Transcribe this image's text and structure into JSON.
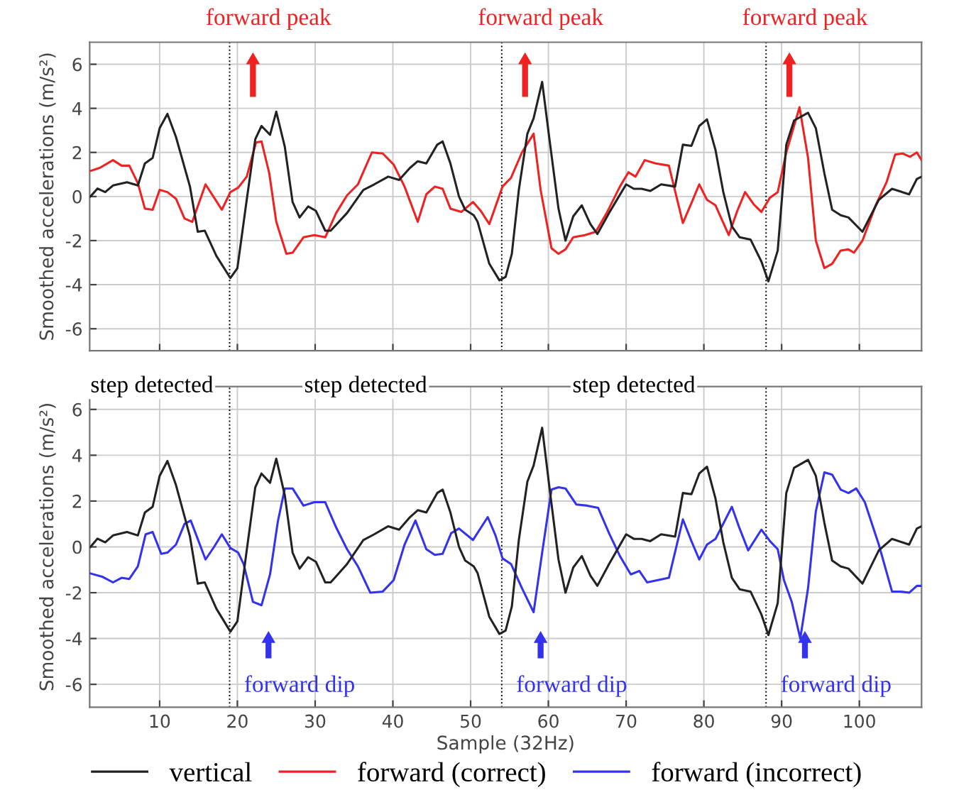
{
  "chart_data": [
    {
      "type": "line",
      "ylabel": "Smoothed accelerations (m/s²)",
      "xlim": [
        1,
        108
      ],
      "ylim": [
        -7,
        7
      ],
      "xticks": [
        10,
        20,
        30,
        40,
        50,
        60,
        70,
        80,
        90,
        100
      ],
      "yticks": [
        -6,
        -4,
        -2,
        0,
        2,
        4,
        6
      ],
      "tick_labels": "y",
      "grid": true,
      "line_style": "solid",
      "marker": "none",
      "series": [
        {
          "name": "vertical",
          "color": "#222222",
          "x": [
            1.1,
            2,
            3,
            4,
            5.8,
            7.2,
            8.1,
            9.1,
            10,
            11,
            12.1,
            13.9,
            14.9,
            15.8,
            17.3,
            19.1,
            20,
            21.2,
            22.3,
            23.1,
            24.2,
            25,
            26.1,
            27.1,
            28,
            29.1,
            30.1,
            31.3,
            32,
            34.1,
            36.2,
            37.6,
            39.4,
            40.8,
            42.2,
            43.2,
            44.3,
            45.7,
            46.4,
            47.4,
            48.5,
            49.3,
            50.4,
            50.9,
            52.4,
            53.7,
            54.5,
            55.3,
            56.2,
            57.3,
            58.1,
            59.2,
            60.1,
            61.3,
            62.2,
            63.2,
            64.3,
            65.4,
            66.3,
            67.8,
            70,
            71,
            72,
            73.1,
            74.5,
            76.3,
            77.3,
            78.4,
            79.4,
            80.4,
            81.5,
            82.5,
            83.6,
            84.6,
            86,
            87.4,
            88.3,
            89.5,
            90.6,
            91.6,
            93.4,
            94.4,
            95.5,
            96.5,
            97.6,
            98.6,
            100.4,
            102.5,
            104.2,
            106.4,
            107.4,
            108
          ],
          "values": [
            0.0,
            0.36,
            0.2,
            0.5,
            0.65,
            0.5,
            1.5,
            1.75,
            3.1,
            3.75,
            2.7,
            0.45,
            -1.6,
            -1.55,
            -2.7,
            -3.7,
            -3.25,
            -0.15,
            2.6,
            3.2,
            2.8,
            3.85,
            2.25,
            -0.25,
            -0.95,
            -0.45,
            -0.65,
            -1.55,
            -1.55,
            -0.75,
            0.3,
            0.55,
            0.9,
            0.75,
            1.3,
            1.6,
            1.5,
            2.35,
            2.5,
            1.5,
            0.0,
            -0.6,
            -0.85,
            -1.15,
            -3.05,
            -3.8,
            -3.65,
            -2.6,
            0.3,
            2.85,
            3.55,
            5.2,
            2.7,
            -0.55,
            -2.0,
            -0.9,
            -0.4,
            -1.25,
            -1.7,
            -0.75,
            0.55,
            0.35,
            0.35,
            0.25,
            0.55,
            0.45,
            2.35,
            2.3,
            3.2,
            3.5,
            2.1,
            0.2,
            -1.35,
            -1.85,
            -1.95,
            -2.95,
            -3.85,
            -2.45,
            2.35,
            3.45,
            3.8,
            3.1,
            1.05,
            -0.6,
            -0.85,
            -0.95,
            -1.6,
            -0.15,
            0.35,
            0.1,
            0.8,
            0.9
          ]
        },
        {
          "name": "forward (correct)",
          "color": "#ee2222",
          "x": [
            1,
            2.3,
            4,
            5.1,
            6.1,
            7.2,
            8.1,
            9.1,
            10,
            11,
            12.1,
            13.2,
            14.2,
            15.9,
            17,
            18,
            19.1,
            20.1,
            21.2,
            22.4,
            23.1,
            24.1,
            25,
            26.3,
            27.1,
            28.5,
            29.9,
            31.3,
            32.7,
            34.1,
            35.5,
            37.3,
            38.7,
            40.1,
            41.5,
            43.2,
            44.3,
            45.4,
            46.4,
            47.4,
            48.8,
            50.3,
            51.3,
            52.4,
            54.1,
            55.2,
            56.6,
            58.1,
            59,
            60.4,
            61.3,
            62.2,
            63.2,
            64.7,
            66.1,
            67.5,
            69.2,
            70.3,
            71.2,
            72.4,
            73.8,
            75.5,
            77.3,
            78.4,
            79.4,
            80.4,
            81.5,
            83.2,
            84.3,
            85.3,
            86.4,
            87.4,
            88.5,
            89.5,
            90.6,
            92.3,
            93.4,
            94.4,
            95.5,
            96.5,
            97.6,
            98.6,
            99.3,
            100.4,
            102.1,
            103.5,
            104.6,
            105.6,
            106.5,
            107.4,
            108
          ],
          "values": [
            1.15,
            1.3,
            1.65,
            1.4,
            1.4,
            0.6,
            -0.55,
            -0.6,
            0.3,
            0.2,
            -0.1,
            -1.0,
            -1.15,
            0.55,
            -0.05,
            -0.6,
            0.2,
            0.4,
            0.9,
            2.45,
            2.5,
            1.05,
            -1.15,
            -2.6,
            -2.55,
            -1.85,
            -1.75,
            -1.85,
            -0.75,
            0.05,
            0.55,
            2.0,
            1.95,
            1.45,
            0.45,
            -1.15,
            0.1,
            0.45,
            0.35,
            -0.55,
            -0.7,
            -0.25,
            -0.65,
            -1.25,
            0.45,
            0.85,
            2.0,
            2.85,
            0.3,
            -2.35,
            -2.6,
            -2.4,
            -1.85,
            -1.75,
            -1.6,
            -0.75,
            0.45,
            1.1,
            0.9,
            1.65,
            1.5,
            1.4,
            -1.2,
            -0.3,
            0.55,
            -0.15,
            -0.4,
            -1.75,
            -0.65,
            0.2,
            -0.35,
            -0.7,
            -0.05,
            0.2,
            2.0,
            4.05,
            1.75,
            -2.0,
            -3.25,
            -3.05,
            -2.45,
            -2.4,
            -2.55,
            -2.0,
            -0.4,
            0.65,
            1.9,
            1.95,
            1.8,
            2.0,
            1.65
          ]
        }
      ],
      "ref_lines": [
        {
          "axis": "x",
          "value": 19,
          "color": "#000000",
          "line_style": "dotted"
        },
        {
          "axis": "x",
          "value": 54,
          "color": "#000000",
          "line_style": "dotted"
        },
        {
          "axis": "x",
          "value": 88,
          "color": "#000000",
          "line_style": "dotted"
        }
      ],
      "legend": "bottom",
      "annotations": [
        "forward peak",
        "forward peak",
        "forward peak"
      ]
    },
    {
      "type": "line",
      "xlabel": "Sample (32Hz)",
      "ylabel": "Smoothed accelerations (m/s²)",
      "xlim": [
        1,
        108
      ],
      "ylim": [
        -7,
        7
      ],
      "xticks": [
        10,
        20,
        30,
        40,
        50,
        60,
        70,
        80,
        90,
        100
      ],
      "yticks": [
        -6,
        -4,
        -2,
        0,
        2,
        4,
        6
      ],
      "grid": true,
      "legend": "bottom",
      "line_style": "solid",
      "marker": "none",
      "series": [
        {
          "name": "vertical",
          "color": "#222222",
          "x": [
            1.1,
            2,
            3,
            4,
            5.8,
            7.2,
            8.1,
            9.1,
            10,
            11,
            12.1,
            13.9,
            14.9,
            15.8,
            17.3,
            19.1,
            20,
            21.2,
            22.3,
            23.1,
            24.2,
            25,
            26.1,
            27.1,
            28,
            29.1,
            30.1,
            31.3,
            32,
            34.1,
            36.2,
            37.6,
            39.4,
            40.8,
            42.2,
            43.2,
            44.3,
            45.7,
            46.4,
            47.4,
            48.5,
            49.3,
            50.4,
            50.9,
            52.4,
            53.7,
            54.5,
            55.3,
            56.2,
            57.3,
            58.1,
            59.2,
            60.1,
            61.3,
            62.2,
            63.2,
            64.3,
            65.4,
            66.3,
            67.8,
            70,
            71,
            72,
            73.1,
            74.5,
            76.3,
            77.3,
            78.4,
            79.4,
            80.4,
            81.5,
            82.5,
            83.6,
            84.6,
            86,
            87.4,
            88.3,
            89.5,
            90.6,
            91.6,
            93.4,
            94.4,
            95.5,
            96.5,
            97.6,
            98.6,
            100.4,
            102.5,
            104.2,
            106.4,
            107.4,
            108
          ],
          "values": [
            0.0,
            0.36,
            0.2,
            0.5,
            0.65,
            0.5,
            1.5,
            1.75,
            3.1,
            3.75,
            2.7,
            0.45,
            -1.6,
            -1.55,
            -2.7,
            -3.7,
            -3.25,
            -0.15,
            2.6,
            3.2,
            2.8,
            3.85,
            2.25,
            -0.25,
            -0.95,
            -0.45,
            -0.65,
            -1.55,
            -1.55,
            -0.75,
            0.3,
            0.55,
            0.9,
            0.75,
            1.3,
            1.6,
            1.5,
            2.35,
            2.5,
            1.5,
            0.0,
            -0.6,
            -0.85,
            -1.15,
            -3.05,
            -3.8,
            -3.65,
            -2.6,
            0.3,
            2.85,
            3.55,
            5.2,
            2.7,
            -0.55,
            -2.0,
            -0.9,
            -0.4,
            -1.25,
            -1.7,
            -0.75,
            0.55,
            0.35,
            0.35,
            0.25,
            0.55,
            0.45,
            2.35,
            2.3,
            3.2,
            3.5,
            2.1,
            0.2,
            -1.35,
            -1.85,
            -1.95,
            -2.95,
            -3.85,
            -2.45,
            2.35,
            3.45,
            3.8,
            3.1,
            1.05,
            -0.6,
            -0.85,
            -0.95,
            -1.6,
            -0.15,
            0.35,
            0.1,
            0.8,
            0.9
          ]
        },
        {
          "name": "forward (incorrect)",
          "color": "#3333ee",
          "x": [
            1,
            2.6,
            4,
            5.1,
            6.1,
            7.2,
            8.2,
            9.1,
            10.2,
            11,
            12.1,
            13.2,
            14,
            15.9,
            17,
            18,
            19.1,
            20.1,
            20.8,
            22,
            23.1,
            24.2,
            25.2,
            26.1,
            27.1,
            28.5,
            29.9,
            31.3,
            32.7,
            34.1,
            35.5,
            37.1,
            38.7,
            40.1,
            41.5,
            42.9,
            44.3,
            45.4,
            46.4,
            47.5,
            48.5,
            50.3,
            52.2,
            53.2,
            54.1,
            55.2,
            56.6,
            58.1,
            59.2,
            60.4,
            61.3,
            62.2,
            63.6,
            65,
            66.4,
            67.8,
            69.2,
            70.6,
            71.7,
            72.7,
            74.1,
            75.5,
            77.3,
            78.4,
            79.4,
            80.4,
            81.5,
            83.6,
            84.6,
            85.7,
            87.4,
            88.5,
            89.5,
            90.3,
            91.3,
            92.4,
            93.4,
            94.4,
            95.5,
            96.5,
            97.6,
            98.6,
            99.6,
            100.7,
            102.5,
            104.2,
            105.3,
            106.4,
            107.4,
            108
          ],
          "values": [
            -1.15,
            -1.3,
            -1.55,
            -1.35,
            -1.4,
            -0.85,
            0.55,
            0.65,
            -0.3,
            -0.25,
            0.1,
            1.0,
            1.15,
            -0.55,
            0.0,
            0.55,
            -0.05,
            -0.25,
            -0.75,
            -2.4,
            -2.55,
            -1.2,
            1.1,
            2.55,
            2.55,
            1.8,
            1.95,
            1.95,
            0.85,
            -0.1,
            -0.85,
            -2.0,
            -1.95,
            -1.45,
            0.1,
            1.15,
            -0.1,
            -0.35,
            -0.3,
            0.6,
            0.8,
            0.3,
            1.3,
            0.5,
            -0.5,
            -0.75,
            -1.8,
            -2.85,
            -0.25,
            2.5,
            2.6,
            2.55,
            1.85,
            1.8,
            1.7,
            0.6,
            -0.4,
            -1.2,
            -1.05,
            -1.55,
            -1.45,
            -1.35,
            1.2,
            0.25,
            -0.55,
            0.1,
            0.35,
            1.75,
            0.8,
            -0.15,
            0.75,
            0.25,
            -0.1,
            -1.45,
            -2.4,
            -4.0,
            -1.8,
            1.55,
            3.25,
            3.15,
            2.5,
            2.35,
            2.55,
            1.95,
            0.1,
            -1.95,
            -1.95,
            -2.0,
            -1.7,
            -1.7
          ]
        }
      ],
      "ref_lines": [
        {
          "axis": "x",
          "value": 19,
          "color": "#000000",
          "line_style": "dotted"
        },
        {
          "axis": "x",
          "value": 54,
          "color": "#000000",
          "line_style": "dotted"
        },
        {
          "axis": "x",
          "value": 88,
          "color": "#000000",
          "line_style": "dotted"
        }
      ],
      "annotations": [
        "step detected",
        "step detected",
        "step detected",
        "forward dip",
        "forward dip",
        "forward dip"
      ]
    }
  ]
}
